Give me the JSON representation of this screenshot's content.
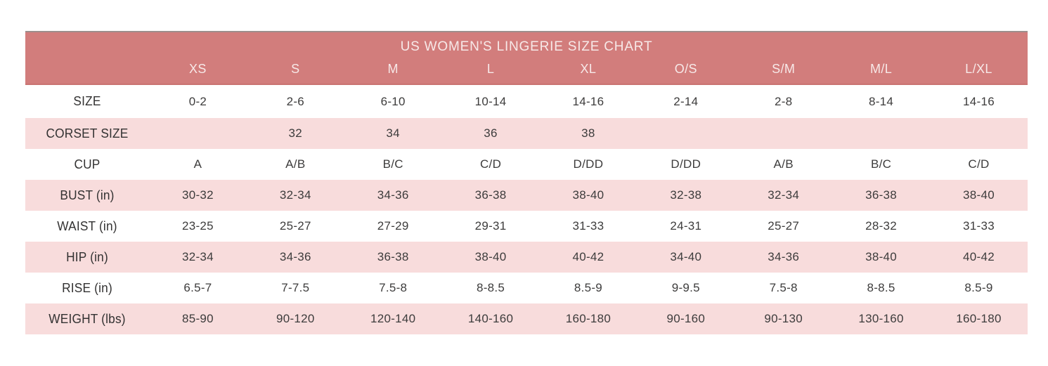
{
  "colors": {
    "header_bg": "#d27d7c",
    "header_text": "#f7e9e8",
    "row_bg": "#ffffff",
    "row_alt_bg": "#f8dcdc",
    "body_text": "#3d3c3c",
    "label_text": "#333232",
    "top_border": "#9e8f8d"
  },
  "chart_data": {
    "type": "table",
    "title": "US WOMEN'S LINGERIE SIZE CHART",
    "column_headers": [
      "XS",
      "S",
      "M",
      "L",
      "XL",
      "O/S",
      "S/M",
      "M/L",
      "L/XL"
    ],
    "rows": [
      {
        "label": "SIZE",
        "values": [
          "0-2",
          "2-6",
          "6-10",
          "10-14",
          "14-16",
          "2-14",
          "2-8",
          "8-14",
          "14-16"
        ]
      },
      {
        "label": "CORSET SIZE",
        "values": [
          "",
          "32",
          "34",
          "36",
          "38",
          "",
          "",
          "",
          ""
        ]
      },
      {
        "label": "CUP",
        "values": [
          "A",
          "A/B",
          "B/C",
          "C/D",
          "D/DD",
          "D/DD",
          "A/B",
          "B/C",
          "C/D"
        ]
      },
      {
        "label": "BUST (in)",
        "values": [
          "30-32",
          "32-34",
          "34-36",
          "36-38",
          "38-40",
          "32-38",
          "32-34",
          "36-38",
          "38-40"
        ]
      },
      {
        "label": "WAIST (in)",
        "values": [
          "23-25",
          "25-27",
          "27-29",
          "29-31",
          "31-33",
          "24-31",
          "25-27",
          "28-32",
          "31-33"
        ]
      },
      {
        "label": "HIP (in)",
        "values": [
          "32-34",
          "34-36",
          "36-38",
          "38-40",
          "40-42",
          "34-40",
          "34-36",
          "38-40",
          "40-42"
        ]
      },
      {
        "label": "RISE (in)",
        "values": [
          "6.5-7",
          "7-7.5",
          "7.5-8",
          "8-8.5",
          "8.5-9",
          "9-9.5",
          "7.5-8",
          "8-8.5",
          "8.5-9"
        ]
      },
      {
        "label": "WEIGHT (lbs)",
        "values": [
          "85-90",
          "90-120",
          "120-140",
          "140-160",
          "160-180",
          "90-160",
          "90-130",
          "130-160",
          "160-180"
        ]
      }
    ],
    "layout": {
      "legend": "none",
      "grid": "off",
      "row_striping": "alternating white and light pink, starting white"
    }
  }
}
